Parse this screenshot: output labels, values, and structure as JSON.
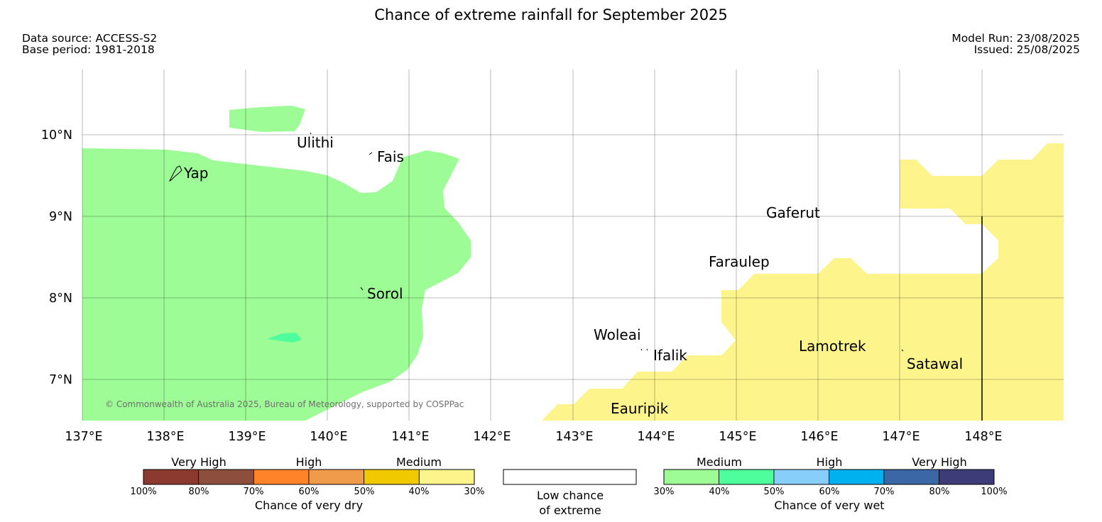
{
  "title": "Chance of extreme rainfall for September 2025",
  "meta_left": {
    "source": "Data source: ACCESS-S2",
    "base_period": "Base period: 1981-2018"
  },
  "meta_right": {
    "model_run": "Model Run: 23/08/2025",
    "issued": "Issued: 25/08/2025"
  },
  "map": {
    "lon_range": [
      137,
      149
    ],
    "lat_range": [
      6.5,
      10.8
    ],
    "lon_ticks": [
      "137°E",
      "138°E",
      "139°E",
      "140°E",
      "141°E",
      "142°E",
      "143°E",
      "144°E",
      "145°E",
      "146°E",
      "147°E",
      "148°E"
    ],
    "lat_ticks": [
      "10°N",
      "9°N",
      "8°N",
      "7°N"
    ],
    "places": [
      "Ulithi",
      "Fais",
      "Yap",
      "Gaferut",
      "Faraulep",
      "Sorol",
      "Woleai",
      "Ifalik",
      "Lamotrek",
      "Satawal",
      "Eauripik"
    ],
    "copyright": "© Commonwealth of Australia 2025, Bureau of Meteorology, supported by COSPPac",
    "regions": [
      {
        "category": "Medium (chance of very wet 30-40%)",
        "color": "#9dfc96"
      },
      {
        "category": "Medium (chance of very wet 40-50%)",
        "color": "#4efd9c"
      },
      {
        "category": "Medium (chance of very dry 30-40%)",
        "color": "#fdf58b"
      }
    ]
  },
  "legend": {
    "dry": {
      "levels": [
        "Very High",
        "High",
        "Medium"
      ],
      "colors": [
        "#8c3a30",
        "#8e4e3e",
        "#ff8328",
        "#ef9b4b",
        "#f0c900",
        "#fdf58b"
      ],
      "ticks": [
        "100%",
        "80%",
        "70%",
        "60%",
        "50%",
        "40%",
        "30%"
      ],
      "label": "Chance of very dry"
    },
    "low": {
      "line1": "Low chance",
      "line2": "of extreme",
      "color": "#ffffff"
    },
    "wet": {
      "levels": [
        "Medium",
        "High",
        "Very High"
      ],
      "colors": [
        "#9dfc96",
        "#4efd9c",
        "#87cffa",
        "#00b1ef",
        "#3b67a6",
        "#3d3c79"
      ],
      "ticks": [
        "30%",
        "40%",
        "50%",
        "60%",
        "70%",
        "80%",
        "100%"
      ],
      "label": "Chance of very wet"
    }
  }
}
